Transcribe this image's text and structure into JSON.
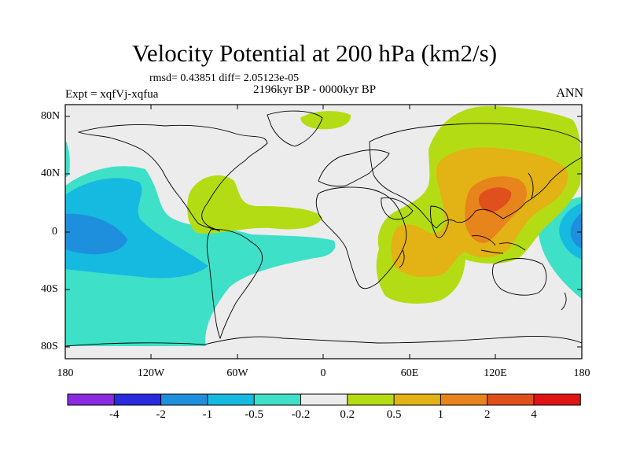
{
  "title": "Velocity Potential at 200 hPa (km2/s)",
  "stats": "rmsd= 0.43851 diff= 2.05123e-05",
  "expt": "Expt = xqfVj-xqfua",
  "period": "2196kyr BP - 0000kyr BP",
  "season": "ANN",
  "lat_labels": [
    "80N",
    "40N",
    "0",
    "40S",
    "80S"
  ],
  "lon_labels": [
    "180",
    "120W",
    "60W",
    "0",
    "60E",
    "120E",
    "180"
  ],
  "colorbar": {
    "labels": [
      "-4",
      "-2",
      "-1",
      "-0.5",
      "-0.2",
      "0.2",
      "0.5",
      "1",
      "2",
      "4"
    ],
    "colors": [
      "#8a2be2",
      "#2a2adf",
      "#1e8fdc",
      "#16b9e0",
      "#3ee0c8",
      "#ececec",
      "#b4dc14",
      "#e3b214",
      "#e8841c",
      "#e0501c",
      "#e01414"
    ]
  },
  "colors": {
    "neutral": "#ececec",
    "cyan": "#3ee0c8",
    "lightblue": "#16b9e0",
    "blue": "#1e8fdc",
    "lime": "#b4dc14",
    "gold": "#e3b214",
    "orange": "#e8841c",
    "darkorange": "#e0501c"
  }
}
